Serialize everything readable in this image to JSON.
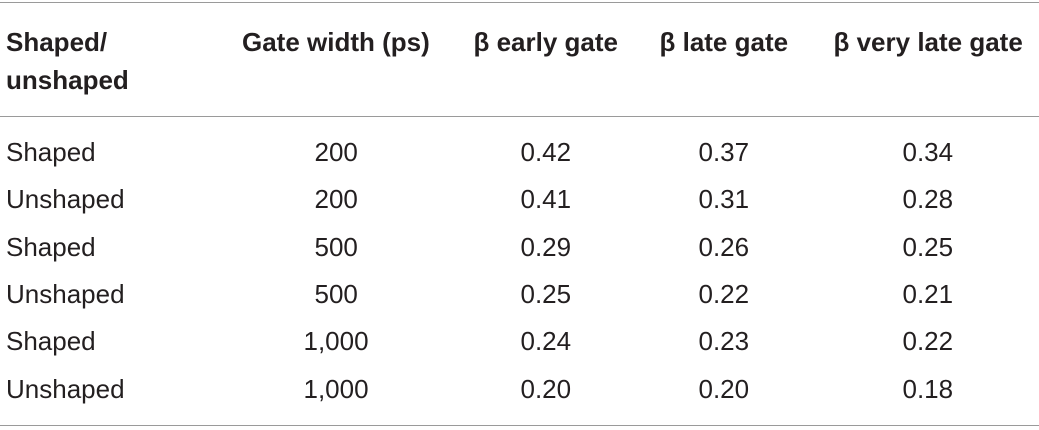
{
  "table": {
    "header": [
      "Shaped/ unshaped",
      "Gate width (ps)",
      "β early gate",
      "β late gate",
      "β very late gate"
    ],
    "rows": [
      [
        "Shaped",
        "200",
        "0.42",
        "0.37",
        "0.34"
      ],
      [
        "Unshaped",
        "200",
        "0.41",
        "0.31",
        "0.28"
      ],
      [
        "Shaped",
        "500",
        "0.29",
        "0.26",
        "0.25"
      ],
      [
        "Unshaped",
        "500",
        "0.25",
        "0.22",
        "0.21"
      ],
      [
        "Shaped",
        "1,000",
        "0.24",
        "0.23",
        "0.22"
      ],
      [
        "Unshaped",
        "1,000",
        "0.20",
        "0.20",
        "0.18"
      ]
    ]
  }
}
